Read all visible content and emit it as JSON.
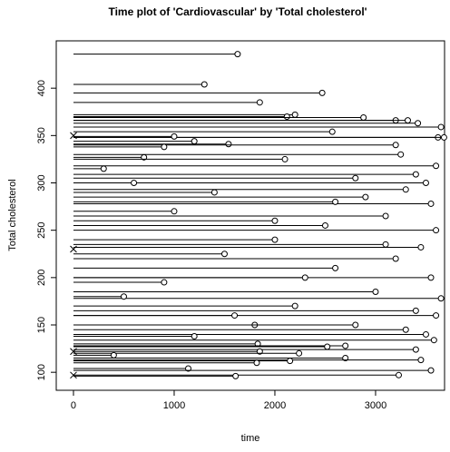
{
  "chart_data": {
    "type": "timeplot",
    "title": "Time plot of 'Cardiovascular' by 'Total cholesterol'",
    "x_label": "time",
    "y_label": "Total cholesterol",
    "x": [
      1630,
      1300,
      2470,
      1850,
      2200,
      2120,
      2880,
      3200,
      3320,
      3420,
      3650,
      2570,
      3620,
      3680,
      1000,
      1200,
      1540,
      3200,
      900,
      3250,
      700,
      2100,
      3600,
      3400,
      2800,
      3500,
      3300,
      2900,
      3550,
      3100,
      2500,
      3600,
      2000,
      3450,
      1500,
      3200,
      2600,
      3550,
      900,
      3000,
      3650,
      2200,
      3400,
      3600,
      1800,
      3300,
      3500,
      1200,
      3580,
      1830,
      2700,
      2520,
      3400,
      1850,
      2240,
      400,
      2700,
      3450,
      2150,
      1820,
      1140,
      3230,
      1610,
      3550,
      2000,
      1000,
      1400,
      600,
      300,
      2600,
      3100,
      2300,
      500,
      1600,
      2800,
      0,
      0,
      0,
      0
    ],
    "values": [
      436,
      404,
      395,
      385,
      372,
      370,
      369,
      366,
      366,
      363,
      359,
      354,
      348,
      348,
      349,
      344,
      341,
      340,
      338,
      330,
      327,
      325,
      318,
      309,
      305,
      300,
      293,
      285,
      278,
      265,
      255,
      250,
      240,
      232,
      225,
      220,
      210,
      200,
      195,
      185,
      178,
      170,
      165,
      160,
      150,
      145,
      140,
      138,
      134,
      130,
      128,
      127,
      124,
      122,
      120,
      118,
      115,
      113,
      112,
      110,
      104,
      97,
      96,
      102,
      260,
      270,
      290,
      300,
      315,
      280,
      235,
      200,
      180,
      160,
      150,
      350,
      122,
      97,
      230
    ],
    "shapes": [
      "o",
      "o",
      "o",
      "o",
      "o",
      "o",
      "o",
      "o",
      "o",
      "o",
      "o",
      "o",
      "o",
      "o",
      "o",
      "o",
      "o",
      "o",
      "o",
      "o",
      "o",
      "o",
      "o",
      "o",
      "o",
      "o",
      "o",
      "o",
      "o",
      "o",
      "o",
      "o",
      "o",
      "o",
      "o",
      "o",
      "o",
      "o",
      "o",
      "o",
      "o",
      "o",
      "o",
      "o",
      "o",
      "o",
      "o",
      "o",
      "o",
      "o",
      "o",
      "o",
      "o",
      "o",
      "o",
      "o",
      "o",
      "o",
      "o",
      "o",
      "o",
      "o",
      "o",
      "o",
      "o",
      "o",
      "o",
      "o",
      "o",
      "o",
      "o",
      "o",
      "o",
      "o",
      "o",
      "x",
      "x",
      "x",
      "x"
    ],
    "xlim": [
      -171,
      3685
    ],
    "ylim": [
      81,
      450
    ],
    "xticks": [
      0,
      1000,
      2000,
      3000
    ],
    "yticks": [
      100,
      150,
      200,
      250,
      300,
      350,
      400
    ],
    "color": "#000000"
  }
}
